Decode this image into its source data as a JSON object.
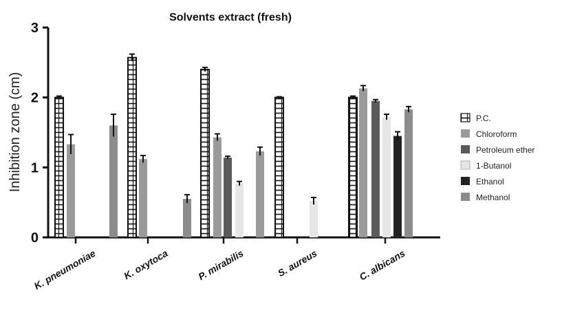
{
  "chart_data": {
    "type": "bar",
    "title": "Solvents extract (fresh)",
    "xlabel": "",
    "ylabel": "Inhibition zone (cm)",
    "ylim": [
      0,
      3
    ],
    "yticks": [
      "0",
      "1",
      "2",
      "3"
    ],
    "grid": false,
    "legend_position": "right",
    "categories": [
      "K. pneumoniae",
      "K. oxytoca",
      "P. mirabilis",
      "S. aureus",
      "C. albicans"
    ],
    "series": [
      {
        "name": "P.C.",
        "color": "#ffffff",
        "pattern": "hatched",
        "values": [
          2.0,
          2.57,
          2.4,
          2.0,
          2.0
        ],
        "errors": [
          0.02,
          0.05,
          0.03,
          0.01,
          0.02
        ]
      },
      {
        "name": "Chloroform",
        "color": "#9a9a9a",
        "values": [
          1.33,
          1.12,
          1.43,
          1.23,
          2.13
        ],
        "errors": [
          0.14,
          0.05,
          0.05,
          0.06,
          0.04
        ]
      },
      {
        "name": "Petroleum ether",
        "color": "#5a5a5a",
        "values": [
          null,
          null,
          1.14,
          null,
          1.95
        ],
        "errors": [
          null,
          null,
          0.02,
          null,
          0.02
        ]
      },
      {
        "name": "1-Butanol",
        "color": "#e6e6e6",
        "values": [
          null,
          null,
          0.77,
          0.52,
          1.72
        ],
        "errors": [
          null,
          null,
          0.03,
          0.05,
          0.04
        ]
      },
      {
        "name": "Ethanol",
        "color": "#222222",
        "values": [
          null,
          null,
          null,
          null,
          1.45
        ],
        "errors": [
          null,
          null,
          null,
          null,
          0.06
        ]
      },
      {
        "name": "Methanol",
        "color": "#8c8c8c",
        "values": [
          1.6,
          0.55,
          null,
          null,
          1.83
        ],
        "errors": [
          0.16,
          0.06,
          null,
          null,
          0.04
        ]
      }
    ]
  }
}
